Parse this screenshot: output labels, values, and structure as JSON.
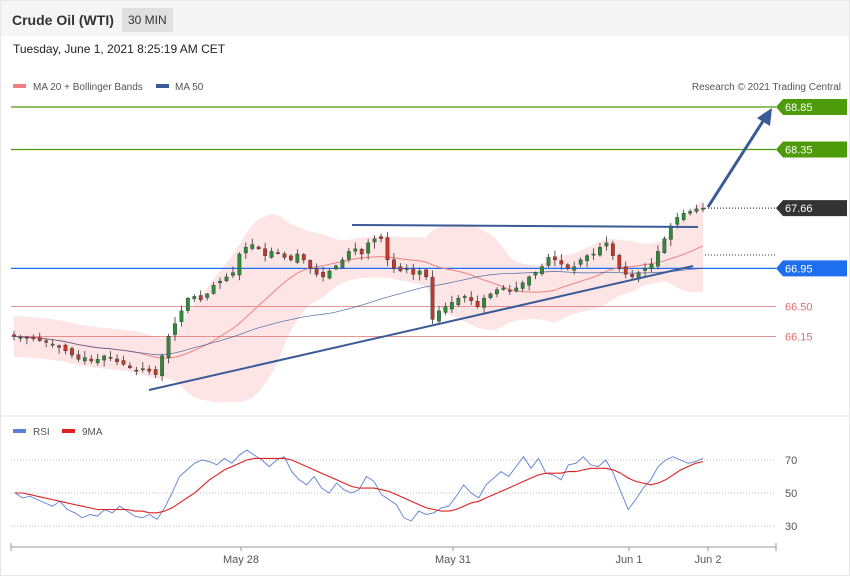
{
  "header": {
    "title": "Crude Oil (WTI)",
    "timeframe": "30 MIN"
  },
  "date_text": "Tuesday, June 1, 2021 8:25:19 AM CET",
  "copyright": "Research © 2021 Trading Central",
  "colors": {
    "ma20": "#f08080",
    "ma50": "#3a5a98",
    "resistance": "#4d9a0a",
    "support": "#e07070",
    "pivot": "#1e6ef0",
    "current": "#333333",
    "rsi": "#5b7fd6",
    "rsi_ma": "#e02020",
    "up_candle": "#2e8b3a",
    "down_candle": "#c0392b"
  },
  "chart_data": [
    {
      "type": "candlestick",
      "legend": [
        {
          "name": "MA 20 + Bollinger Bands",
          "color": "#f08080"
        },
        {
          "name": "MA 50",
          "color": "#3a5a98"
        }
      ],
      "x_ticks": [
        "May 28",
        "May 31",
        "Jun 1",
        "Jun 2"
      ],
      "levels": [
        {
          "value": 68.85,
          "label": "68.85",
          "kind": "resistance"
        },
        {
          "value": 68.35,
          "label": "68.35",
          "kind": "resistance"
        },
        {
          "value": 67.66,
          "label": "67.66",
          "kind": "current"
        },
        {
          "value": 66.95,
          "label": "66.95",
          "kind": "pivot"
        },
        {
          "value": 66.5,
          "label": "66.50",
          "kind": "support"
        },
        {
          "value": 66.15,
          "label": "66.15",
          "kind": "support"
        }
      ],
      "closes": [
        66.15,
        66.14,
        66.13,
        66.12,
        66.1,
        66.08,
        66.06,
        66.02,
        65.98,
        65.93,
        65.88,
        65.9,
        65.86,
        65.88,
        65.92,
        65.9,
        65.85,
        65.82,
        65.78,
        65.75,
        65.77,
        65.74,
        65.7,
        65.92,
        66.15,
        66.3,
        66.45,
        66.6,
        66.62,
        66.58,
        66.65,
        66.75,
        66.8,
        66.85,
        66.9,
        67.12,
        67.2,
        67.23,
        67.18,
        67.1,
        67.15,
        67.13,
        67.08,
        67.05,
        67.12,
        67.05,
        66.95,
        66.88,
        66.85,
        66.92,
        66.98,
        67.05,
        67.15,
        67.18,
        67.12,
        67.25,
        67.3,
        67.3,
        67.05,
        66.95,
        66.92,
        66.95,
        66.88,
        66.92,
        66.85,
        66.35,
        66.45,
        66.5,
        66.55,
        66.6,
        66.62,
        66.57,
        66.5,
        66.6,
        66.65,
        66.7,
        66.72,
        66.68,
        66.72,
        66.78,
        66.85,
        66.9,
        66.97,
        67.08,
        67.05,
        67.0,
        66.95,
        66.97,
        67.05,
        67.1,
        67.12,
        67.2,
        67.25,
        67.1,
        66.95,
        66.88,
        66.85,
        66.9,
        66.95,
        67.0,
        67.15,
        67.3,
        67.45,
        67.55,
        67.6,
        67.62,
        67.65,
        67.66
      ]
    },
    {
      "type": "line",
      "legend": [
        {
          "name": "RSI",
          "color": "#5b7fd6"
        },
        {
          "name": "9MA",
          "color": "#e02020"
        }
      ],
      "y_ticks": [
        70,
        50,
        30
      ],
      "ylim": [
        20,
        80
      ],
      "series": [
        {
          "name": "RSI",
          "values": [
            50,
            47,
            48,
            46,
            44,
            42,
            45,
            40,
            38,
            35,
            37,
            36,
            40,
            38,
            42,
            39,
            36,
            35,
            37,
            34,
            41,
            50,
            60,
            64,
            68,
            70,
            69,
            67,
            71,
            68,
            73,
            76,
            73,
            70,
            66,
            70,
            72,
            63,
            58,
            55,
            60,
            53,
            50,
            56,
            52,
            50,
            52,
            60,
            57,
            49,
            46,
            43,
            35,
            33,
            39,
            37,
            38,
            41,
            42,
            48,
            55,
            50,
            47,
            55,
            59,
            63,
            60,
            66,
            72,
            65,
            71,
            62,
            61,
            58,
            67,
            68,
            72,
            67,
            66,
            70,
            62,
            51,
            40,
            46,
            53,
            58,
            66,
            70,
            72,
            70,
            68,
            69,
            71
          ]
        },
        {
          "name": "9MA",
          "values": [
            50,
            50,
            49,
            48,
            47,
            46,
            45,
            44,
            43,
            42,
            41,
            40,
            40,
            40,
            40,
            40,
            39,
            39,
            38,
            38,
            39,
            41,
            44,
            47,
            50,
            54,
            58,
            61,
            64,
            66,
            68,
            70,
            71,
            71,
            71,
            71,
            71,
            70,
            68,
            66,
            64,
            62,
            60,
            58,
            56,
            54,
            53,
            53,
            53,
            52,
            51,
            49,
            47,
            45,
            43,
            41,
            40,
            39,
            39,
            40,
            42,
            44,
            45,
            47,
            49,
            51,
            53,
            55,
            57,
            59,
            61,
            62,
            62,
            62,
            63,
            63,
            64,
            65,
            65,
            65,
            64,
            62,
            59,
            57,
            56,
            55,
            56,
            58,
            61,
            64,
            66,
            68,
            69
          ]
        }
      ]
    }
  ]
}
